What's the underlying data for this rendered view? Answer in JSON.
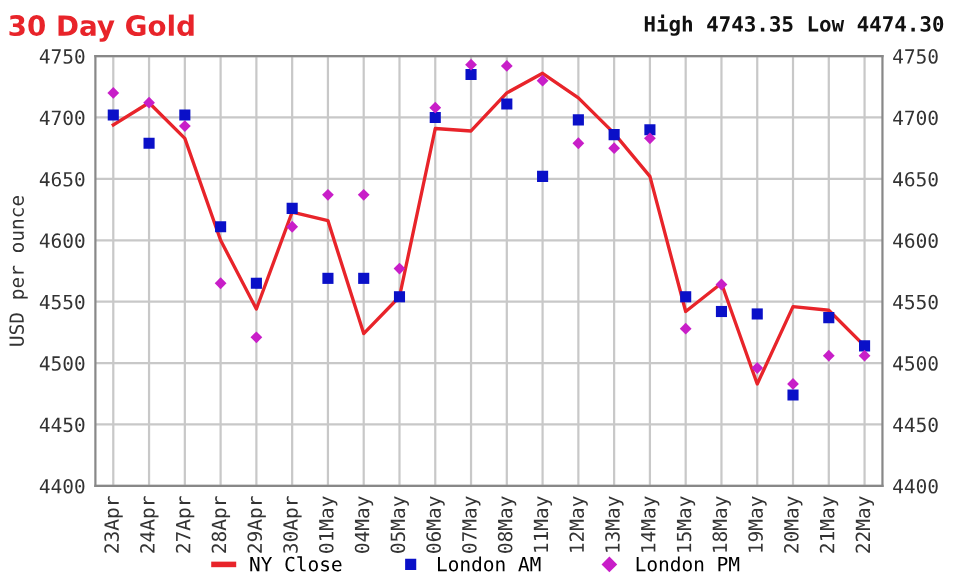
{
  "chart_data": {
    "type": "line",
    "title": "30 Day Gold",
    "subtitle": "High 4743.35 Low 4474.30",
    "ylabel": "USD per ounce",
    "categories": [
      "23Apr",
      "24Apr",
      "27Apr",
      "28Apr",
      "29Apr",
      "30Apr",
      "01May",
      "04May",
      "05May",
      "06May",
      "07May",
      "08May",
      "11May",
      "12May",
      "13May",
      "14May",
      "15May",
      "18May",
      "19May",
      "20May",
      "21May",
      "22May"
    ],
    "series": [
      {
        "name": "NY Close",
        "marker": "none",
        "color": "#e8242a",
        "values": [
          4694,
          4712,
          4683,
          4600,
          4544,
          4623,
          4616,
          4524,
          4554,
          4691,
          4689,
          4720,
          4736,
          4716,
          4687,
          4652,
          4542,
          4565,
          4483,
          4546,
          4543,
          4514
        ]
      },
      {
        "name": "London AM",
        "type": "scatter",
        "marker": "square",
        "color": "#0a10c8",
        "values": [
          4702,
          4679,
          4702,
          4611,
          4565,
          4626,
          4569,
          4569,
          4554,
          4700,
          4735,
          4711,
          4652,
          4698,
          4686,
          4690,
          4554,
          4542,
          4540,
          4474,
          4537,
          4514
        ]
      },
      {
        "name": "London PM",
        "type": "scatter",
        "marker": "diamond",
        "color": "#c81ec8",
        "values": [
          4720,
          4712,
          4693,
          4565,
          4521,
          4611,
          4637,
          4637,
          4577,
          4708,
          4743,
          4742,
          4730,
          4679,
          4675,
          4683,
          4528,
          4564,
          4496,
          4483,
          4506,
          4506
        ]
      }
    ],
    "ylim": [
      4400,
      4750
    ],
    "yticks": [
      4400,
      4450,
      4500,
      4550,
      4600,
      4650,
      4700,
      4750
    ],
    "y2lim": [
      4400,
      4750
    ],
    "y2ticks": [
      4400,
      4450,
      4500,
      4550,
      4600,
      4650,
      4700,
      4750
    ],
    "grid": true,
    "legend": "bottom"
  }
}
